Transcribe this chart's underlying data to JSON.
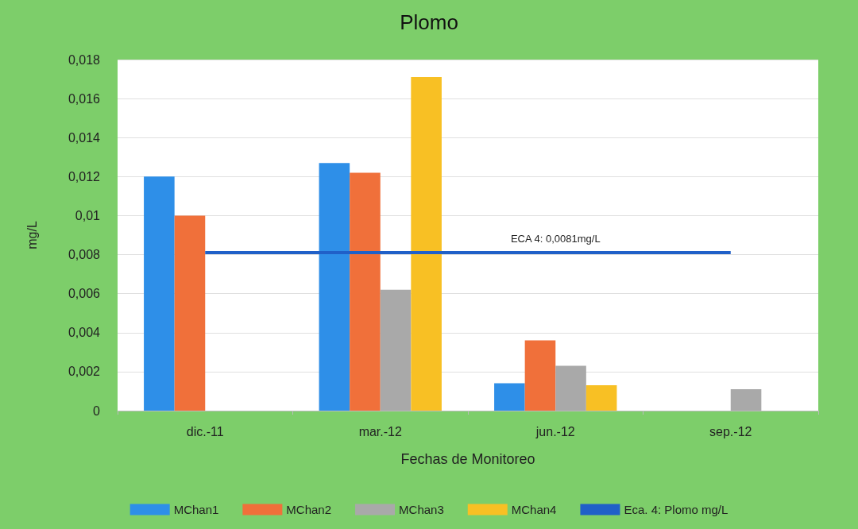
{
  "chart_data": {
    "type": "bar",
    "title": "Plomo",
    "xlabel": "Fechas de Monitoreo",
    "ylabel": "mg/L",
    "categories": [
      "dic.-11",
      "mar.-12",
      "jun.-12",
      "sep.-12"
    ],
    "series": [
      {
        "name": "MChan1",
        "color": "#2e8fe8",
        "values": [
          0.012,
          0.0127,
          0.0014,
          null
        ]
      },
      {
        "name": "MChan2",
        "color": "#f0703a",
        "values": [
          0.01,
          0.0122,
          0.0036,
          null
        ]
      },
      {
        "name": "MChan3",
        "color": "#a9a9a9",
        "values": [
          null,
          0.0062,
          0.0023,
          0.0011
        ]
      },
      {
        "name": "MChan4",
        "color": "#f8c024",
        "values": [
          null,
          0.0171,
          0.0013,
          null
        ]
      },
      {
        "name": "Eca. 4: Plomo mg/L",
        "type": "line",
        "color": "#2060c8",
        "values": [
          0.0081,
          0.0081,
          0.0081,
          0.0081
        ]
      }
    ],
    "annotations": [
      {
        "text": "ECA 4: 0,0081mg/L",
        "x": "jun.-12",
        "y": 0.0081
      }
    ],
    "ylim": [
      0,
      0.018
    ],
    "yticks": [
      0,
      {
        "value": 0.002,
        "label": "0,002"
      },
      {
        "value": 0.004,
        "label": "0,004"
      },
      {
        "value": 0.006,
        "label": "0,006"
      },
      {
        "value": 0.008,
        "label": "0,008"
      },
      {
        "value": 0.01,
        "label": "0,01"
      },
      {
        "value": 0.012,
        "label": "0,012"
      },
      {
        "value": 0.014,
        "label": "0,014"
      },
      {
        "value": 0.016,
        "label": "0,016"
      },
      {
        "value": 0.018,
        "label": "0,018"
      }
    ],
    "grid": "y",
    "legend": "bottom",
    "marker": "none"
  }
}
